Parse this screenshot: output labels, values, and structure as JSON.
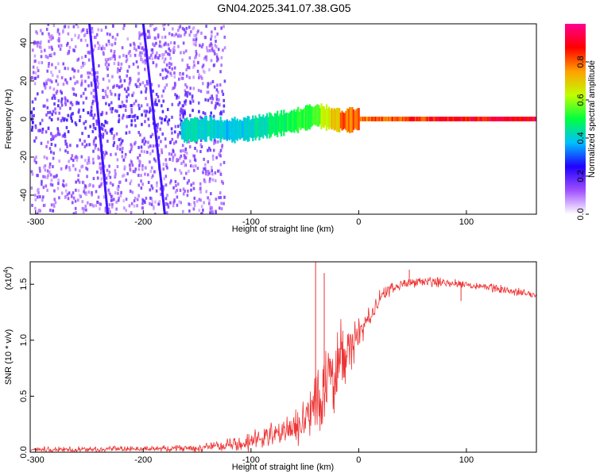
{
  "title": "GN04.2025.341.07.38.G05",
  "chart_data": [
    {
      "id": "spectrogram",
      "type": "heatmap",
      "xlabel": "Height of straight line (km)",
      "ylabel": "Frequency (Hz)",
      "xlim": [
        -305,
        165
      ],
      "ylim": [
        -50,
        50
      ],
      "xticks": [
        -300,
        -200,
        -100,
        0,
        100
      ],
      "yticks": [
        -40,
        -20,
        0,
        20,
        40
      ],
      "colorbar": {
        "label": "Normalized spectral amplitude",
        "range": [
          0,
          1
        ],
        "ticks": [
          "0.0",
          "0.2",
          "0.4",
          "0.6",
          "0.8"
        ],
        "tick_values": [
          0.0,
          0.2,
          0.4,
          0.6,
          0.8
        ],
        "colors": [
          "#ffffff",
          "#a050ff",
          "#2000ff",
          "#00c0ff",
          "#00ff40",
          "#c0ff00",
          "#ffa000",
          "#ff0000",
          "#ff0090"
        ]
      },
      "signal_track": [
        {
          "x": -160,
          "f": -6,
          "amp": 0.45
        },
        {
          "x": -140,
          "f": -5,
          "amp": 0.45
        },
        {
          "x": -120,
          "f": -6,
          "amp": 0.4
        },
        {
          "x": -100,
          "f": -5,
          "amp": 0.45
        },
        {
          "x": -80,
          "f": -3,
          "amp": 0.5
        },
        {
          "x": -60,
          "f": -1,
          "amp": 0.55
        },
        {
          "x": -40,
          "f": 2,
          "amp": 0.6
        },
        {
          "x": -25,
          "f": 0,
          "amp": 0.75
        },
        {
          "x": -15,
          "f": -1,
          "amp": 0.85
        },
        {
          "x": 0,
          "f": 0,
          "amp": 0.85
        },
        {
          "x": 40,
          "f": 0,
          "amp": 0.9
        },
        {
          "x": 80,
          "f": 0,
          "amp": 0.95
        },
        {
          "x": 120,
          "f": 0,
          "amp": 0.97
        },
        {
          "x": 165,
          "f": 0,
          "amp": 0.98
        }
      ],
      "streaks": [
        {
          "x_start": -250,
          "f_start": 50,
          "x_end": -233,
          "f_end": -50
        },
        {
          "x_start": -200,
          "f_start": 50,
          "x_end": -180,
          "f_end": -50
        }
      ]
    },
    {
      "id": "snr",
      "type": "line",
      "xlabel": "Height of straight line (km)",
      "ylabel": "SNR (10 * v/v)",
      "multiplier": "(x10",
      "multiplier_exp": "4",
      "xlim": [
        -305,
        165
      ],
      "ylim": [
        0,
        1.7
      ],
      "xticks": [
        -300,
        -200,
        -100,
        0,
        100
      ],
      "yticks": [
        "0.0",
        "0.5",
        "1.0",
        "1.5"
      ],
      "ytick_values": [
        0.0,
        0.5,
        1.0,
        1.5
      ],
      "color": "#ee3333",
      "envelope": {
        "x": [
          -305,
          -200,
          -150,
          -130,
          -110,
          -90,
          -70,
          -55,
          -45,
          -40,
          -35,
          -30,
          -25,
          -20,
          -15,
          -10,
          -5,
          0,
          10,
          20,
          30,
          40,
          50,
          80,
          100,
          130,
          165
        ],
        "y": [
          0.02,
          0.03,
          0.04,
          0.05,
          0.08,
          0.12,
          0.18,
          0.25,
          0.35,
          0.45,
          0.55,
          0.62,
          0.7,
          0.78,
          0.85,
          0.9,
          0.98,
          1.05,
          1.2,
          1.38,
          1.45,
          1.5,
          1.52,
          1.52,
          1.5,
          1.46,
          1.4
        ]
      },
      "noise": {
        "x": [
          -305,
          -200,
          -150,
          -120,
          -90,
          -60,
          -45,
          -40,
          -30,
          -20,
          -10,
          0,
          20,
          40,
          100,
          165
        ],
        "y": [
          0.02,
          0.02,
          0.03,
          0.05,
          0.08,
          0.12,
          0.2,
          0.3,
          0.35,
          0.3,
          0.2,
          0.12,
          0.06,
          0.04,
          0.03,
          0.03
        ]
      },
      "spikes": [
        {
          "x": -40,
          "y": 1.7
        },
        {
          "x": -32,
          "y": 1.6
        },
        {
          "x": 47,
          "y": 1.63
        },
        {
          "x": 95,
          "y": 1.35
        }
      ]
    }
  ]
}
